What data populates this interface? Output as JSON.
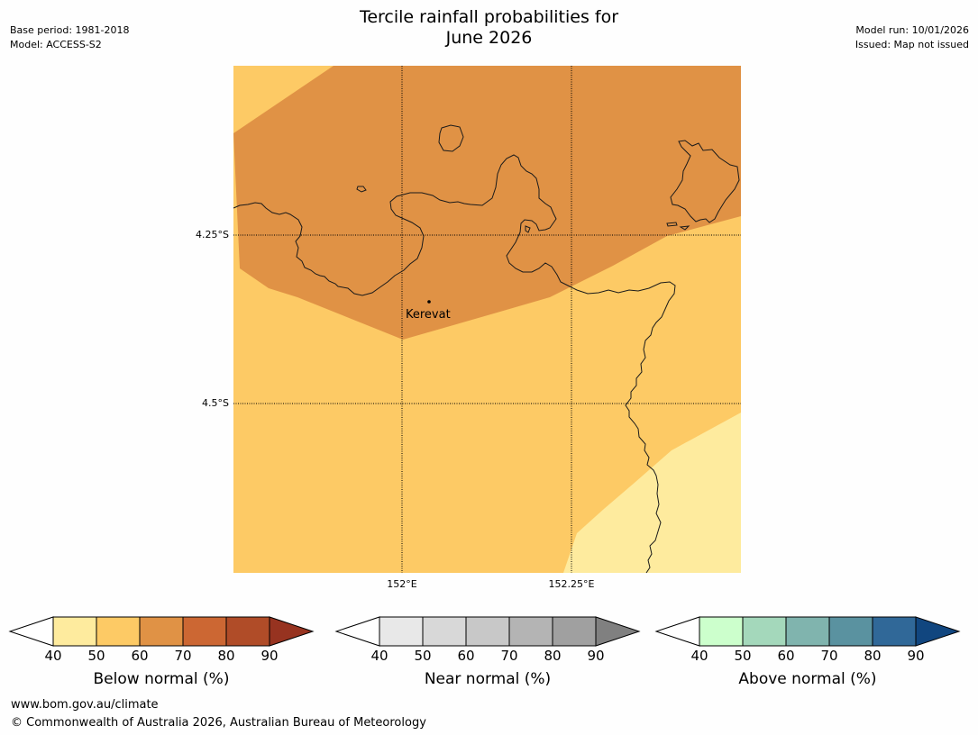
{
  "header": {
    "title_line1": "Tercile rainfall probabilities for",
    "title_line2": "June 2026",
    "base_period": "Base period: 1981-2018",
    "model": "Model: ACCESS-S2",
    "model_run": "Model run: 10/01/2026",
    "issued": "Issued: Map not issued"
  },
  "map": {
    "lat_labels": [
      "4.25°S",
      "4.5°S"
    ],
    "lon_labels": [
      "152°E",
      "152.25°E"
    ],
    "place": "Kerevat",
    "colors": {
      "dark": "#e09245",
      "mid": "#fdca65",
      "light": "#feeb9e"
    }
  },
  "colorbars": [
    {
      "label": "Below normal (%)",
      "ticks": [
        "40",
        "50",
        "60",
        "70",
        "80",
        "90"
      ],
      "colors": [
        "#feeb9e",
        "#fdca65",
        "#e09245",
        "#cc6733",
        "#b04c28"
      ],
      "end_color": "#973320"
    },
    {
      "label": "Near normal (%)",
      "ticks": [
        "40",
        "50",
        "60",
        "70",
        "80",
        "90"
      ],
      "colors": [
        "#e8e8e8",
        "#d8d8d8",
        "#c8c8c8",
        "#b4b4b4",
        "#a0a0a0"
      ],
      "end_color": "#808080"
    },
    {
      "label": "Above normal (%)",
      "ticks": [
        "40",
        "50",
        "60",
        "70",
        "80",
        "90"
      ],
      "colors": [
        "#ccffcc",
        "#a4d8bb",
        "#80b4ae",
        "#5a92a0",
        "#306898"
      ],
      "end_color": "#11467f"
    }
  ],
  "footer": {
    "url": "www.bom.gov.au/climate",
    "copyright": "© Commonwealth of Australia 2026, Australian Bureau of Meteorology"
  }
}
